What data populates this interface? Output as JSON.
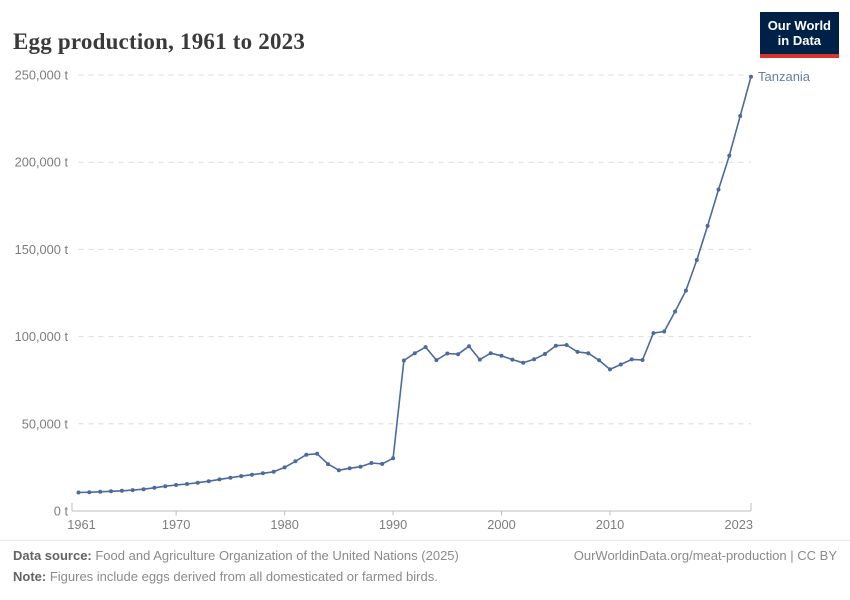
{
  "header": {
    "title": "Egg production, 1961 to 2023"
  },
  "logo": {
    "line1": "Our World",
    "line2": "in Data",
    "bg_color": "#002147",
    "accent_color": "#d8352a"
  },
  "chart_data": {
    "type": "line",
    "title": "Egg production, 1961 to 2023",
    "entity": "Tanzania",
    "unit": "t",
    "line_color": "#4C6A9C",
    "entity_label_color": "#6880A6",
    "grid": "horizontal dashed",
    "legend_position": "end-of-line label",
    "xlim": [
      1961,
      2023
    ],
    "ylim": [
      0,
      250000
    ],
    "x_ticks": [
      1961,
      1970,
      1980,
      1990,
      2000,
      2010,
      2023
    ],
    "y_ticks": [
      {
        "value": 0,
        "label": "0 t"
      },
      {
        "value": 50000,
        "label": "50,000 t"
      },
      {
        "value": 100000,
        "label": "100,000 t"
      },
      {
        "value": 150000,
        "label": "150,000 t"
      },
      {
        "value": 200000,
        "label": "200,000 t"
      },
      {
        "value": 250000,
        "label": "250,000 t"
      }
    ],
    "years": [
      1961,
      1962,
      1963,
      1964,
      1965,
      1966,
      1967,
      1968,
      1969,
      1970,
      1971,
      1972,
      1973,
      1974,
      1975,
      1976,
      1977,
      1978,
      1979,
      1980,
      1981,
      1982,
      1983,
      1984,
      1985,
      1986,
      1987,
      1988,
      1989,
      1990,
      1991,
      1992,
      1993,
      1994,
      1995,
      1996,
      1997,
      1998,
      1999,
      2000,
      2001,
      2002,
      2003,
      2004,
      2005,
      2006,
      2007,
      2008,
      2009,
      2010,
      2011,
      2012,
      2013,
      2014,
      2015,
      2016,
      2017,
      2018,
      2019,
      2020,
      2021,
      2022,
      2023
    ],
    "series": [
      {
        "name": "Tanzania",
        "values": [
          10600,
          10800,
          11000,
          11300,
          11600,
          12000,
          12500,
          13300,
          14200,
          14900,
          15500,
          16200,
          17100,
          18100,
          19100,
          20000,
          20800,
          21600,
          22500,
          25000,
          28500,
          32300,
          32800,
          26900,
          23400,
          24500,
          25400,
          27500,
          27000,
          30300,
          86300,
          90500,
          94000,
          86500,
          90300,
          89900,
          94500,
          86800,
          90500,
          89000,
          86800,
          85000,
          87000,
          90000,
          94800,
          95200,
          91200,
          90500,
          86400,
          81200,
          84000,
          86900,
          86600,
          102000,
          102900,
          114400,
          126400,
          143900,
          163500,
          184300,
          203800,
          226500,
          249000
        ]
      }
    ]
  },
  "footer": {
    "data_source_label": "Data source:",
    "data_source_text": " Food and Agriculture Organization of the United Nations (2025)",
    "note_label": "Note:",
    "note_text": " Figures include eggs derived from all domesticated or farmed birds.",
    "link_text": "OurWorldinData.org/meat-production | CC BY"
  }
}
